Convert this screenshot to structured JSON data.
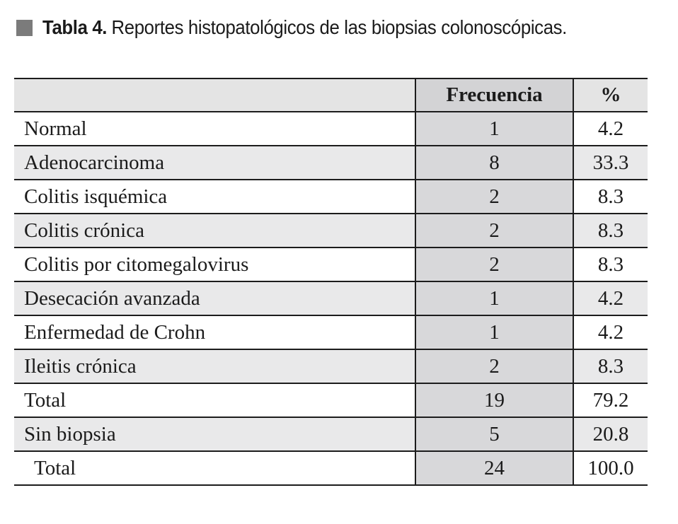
{
  "caption": {
    "bullet_color": "#7b7b7b",
    "number": "Tabla 4.",
    "text": "Reportes histopatológicos de las biopsias colonoscópicas."
  },
  "table": {
    "headers": {
      "name": "",
      "frequency": "Frecuencia",
      "percent": "%"
    },
    "rows": [
      {
        "name": "Normal",
        "frequency": "1",
        "percent": "4.2",
        "indent": false
      },
      {
        "name": "Adenocarcinoma",
        "frequency": "8",
        "percent": "33.3",
        "indent": false
      },
      {
        "name": "Colitis isquémica",
        "frequency": "2",
        "percent": "8.3",
        "indent": false
      },
      {
        "name": "Colitis crónica",
        "frequency": "2",
        "percent": "8.3",
        "indent": false
      },
      {
        "name": "Colitis por citomegalovirus",
        "frequency": "2",
        "percent": "8.3",
        "indent": false
      },
      {
        "name": "Desecación avanzada",
        "frequency": "1",
        "percent": "4.2",
        "indent": false
      },
      {
        "name": "Enfermedad de Crohn",
        "frequency": "1",
        "percent": "4.2",
        "indent": false
      },
      {
        "name": "Ileitis crónica",
        "frequency": "2",
        "percent": "8.3",
        "indent": false
      },
      {
        "name": "Total",
        "frequency": "19",
        "percent": "79.2",
        "indent": false
      },
      {
        "name": "Sin biopsia",
        "frequency": "5",
        "percent": "20.8",
        "indent": false
      },
      {
        "name": "Total",
        "frequency": "24",
        "percent": "100.0",
        "indent": true
      }
    ]
  },
  "colors": {
    "header_bg": "#e4e4e4",
    "header_frequency_bg": "#d3d3d5",
    "frequency_column_bg": "#d8d8da",
    "stripe_bg": "#e9e9ea",
    "border": "#1c1c1c",
    "text": "#1b1b1b",
    "bullet": "#7b7b7b"
  },
  "chart_data": {
    "type": "table",
    "title": "Tabla 4. Reportes histopatológicos de las biopsias colonoscópicas.",
    "columns": [
      "",
      "Frecuencia",
      "%"
    ],
    "rows": [
      [
        "Normal",
        1,
        4.2
      ],
      [
        "Adenocarcinoma",
        8,
        33.3
      ],
      [
        "Colitis isquémica",
        2,
        8.3
      ],
      [
        "Colitis crónica",
        2,
        8.3
      ],
      [
        "Colitis por citomegalovirus",
        2,
        8.3
      ],
      [
        "Desecación avanzada",
        1,
        4.2
      ],
      [
        "Enfermedad de Crohn",
        1,
        4.2
      ],
      [
        "Ileitis crónica",
        2,
        8.3
      ],
      [
        "Total",
        19,
        79.2
      ],
      [
        "Sin biopsia",
        5,
        20.8
      ],
      [
        "Total",
        24,
        100.0
      ]
    ]
  }
}
